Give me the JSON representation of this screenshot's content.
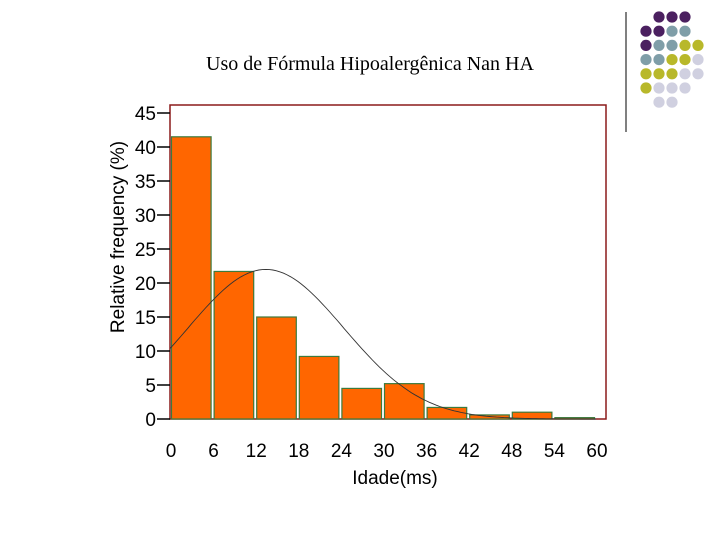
{
  "chart_data": {
    "type": "bar",
    "title": "Uso de Fórmula Hipoalergênica  Nan HA",
    "xlabel": "Idade(ms)",
    "ylabel": "Relative frequency (%)",
    "ylim": [
      0,
      45
    ],
    "xlim": [
      0,
      60
    ],
    "y_ticks": [
      "0",
      "5",
      "10",
      "15",
      "20",
      "25",
      "30",
      "35",
      "40",
      "45"
    ],
    "x_ticks": [
      "0",
      "6",
      "12",
      "18",
      "24",
      "30",
      "36",
      "42",
      "48",
      "54",
      "60"
    ],
    "bins": [
      {
        "start": 0,
        "end": 6,
        "value": 41.5
      },
      {
        "start": 6,
        "end": 12,
        "value": 21.7
      },
      {
        "start": 12,
        "end": 18,
        "value": 15.0
      },
      {
        "start": 18,
        "end": 24,
        "value": 9.2
      },
      {
        "start": 24,
        "end": 30,
        "value": 4.5
      },
      {
        "start": 30,
        "end": 36,
        "value": 5.2
      },
      {
        "start": 36,
        "end": 42,
        "value": 1.7
      },
      {
        "start": 42,
        "end": 48,
        "value": 0.6
      },
      {
        "start": 48,
        "end": 54,
        "value": 1.0
      },
      {
        "start": 54,
        "end": 60,
        "value": 0.2
      }
    ],
    "fit_curve": {
      "type": "normal",
      "mean": 13.5,
      "sd": 11.0,
      "peak": 22.0
    },
    "grid": false,
    "legend": "none",
    "colors": {
      "bar": "#ff6600",
      "bar_edge": "#3d7a3d",
      "frame": "#8b1a1a",
      "curve": "#333333"
    }
  },
  "decoration": {
    "dot_colors": [
      "#4b2060",
      "#7f9ea8",
      "#b8b82a",
      "#d0d0e0"
    ]
  }
}
